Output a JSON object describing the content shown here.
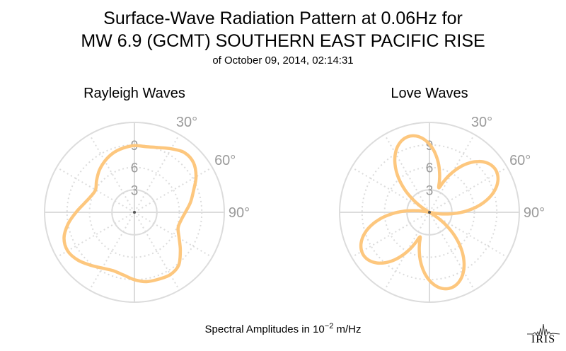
{
  "header": {
    "title_line1": "Surface-Wave Radiation Pattern at 0.06Hz for",
    "title_line2": "MW 6.9 (GCMT) SOUTHERN EAST PACIFIC RISE",
    "subtitle": "of October 09, 2014, 02:14:31"
  },
  "footer": {
    "label_prefix": "Spectral Amplitudes in ",
    "unit_base": "10",
    "unit_exponent": "−2",
    "unit_suffix": " m/Hz",
    "logo_text": "IRIS"
  },
  "colors": {
    "pattern": "#fdc77e",
    "grid": "#dcdcdc",
    "tick_label": "#9a9a9a"
  },
  "chart_data": [
    {
      "type": "polar-line",
      "title": "Rayleigh Waves",
      "r_ticks": [
        "3",
        "6",
        "9"
      ],
      "r_tick_values": [
        3,
        6,
        9
      ],
      "rmax": 12,
      "angle_ticks": [
        "30°",
        "60°",
        "90°"
      ],
      "angle_tick_values": [
        30,
        60,
        90
      ],
      "angle_zero": "north",
      "angle_direction": "clockwise",
      "series": [
        {
          "azimuth_deg": [
            0,
            10,
            20,
            30,
            40,
            50,
            60,
            70,
            80,
            90,
            100,
            110,
            120,
            130,
            140,
            150,
            160,
            170,
            180,
            190,
            200,
            210,
            220,
            230,
            240,
            250,
            260,
            270,
            280,
            290,
            300,
            310,
            320,
            330,
            340,
            350
          ],
          "amplitude": [
            8.9,
            8.9,
            9.2,
            9.8,
            10.4,
            10.3,
            9.5,
            8.4,
            7.6,
            6.8,
            6.3,
            6.2,
            6.9,
            8.0,
            9.2,
            9.6,
            9.5,
            9.4,
            9.0,
            8.5,
            8.3,
            8.6,
            9.2,
            9.9,
            10.3,
            10.0,
            9.0,
            7.8,
            6.8,
            6.2,
            6.0,
            6.6,
            7.3,
            7.9,
            8.4,
            8.7
          ]
        }
      ]
    },
    {
      "type": "polar-line",
      "title": "Love Waves",
      "r_ticks": [
        "3",
        "6",
        "9"
      ],
      "r_tick_values": [
        3,
        6,
        9
      ],
      "rmax": 12,
      "angle_ticks": [
        "30°",
        "60°",
        "90°"
      ],
      "angle_tick_values": [
        30,
        60,
        90
      ],
      "angle_zero": "north",
      "angle_direction": "clockwise",
      "series": [
        {
          "lobes": [
            {
              "peak_azimuth_deg": 57,
              "peak_amplitude": 10.5
            },
            {
              "peak_azimuth_deg": 165,
              "peak_amplitude": 10.5
            },
            {
              "peak_azimuth_deg": 237,
              "peak_amplitude": 10.5
            },
            {
              "peak_azimuth_deg": 345,
              "peak_amplitude": 10.5
            }
          ],
          "min_amplitude": 0
        }
      ]
    }
  ]
}
